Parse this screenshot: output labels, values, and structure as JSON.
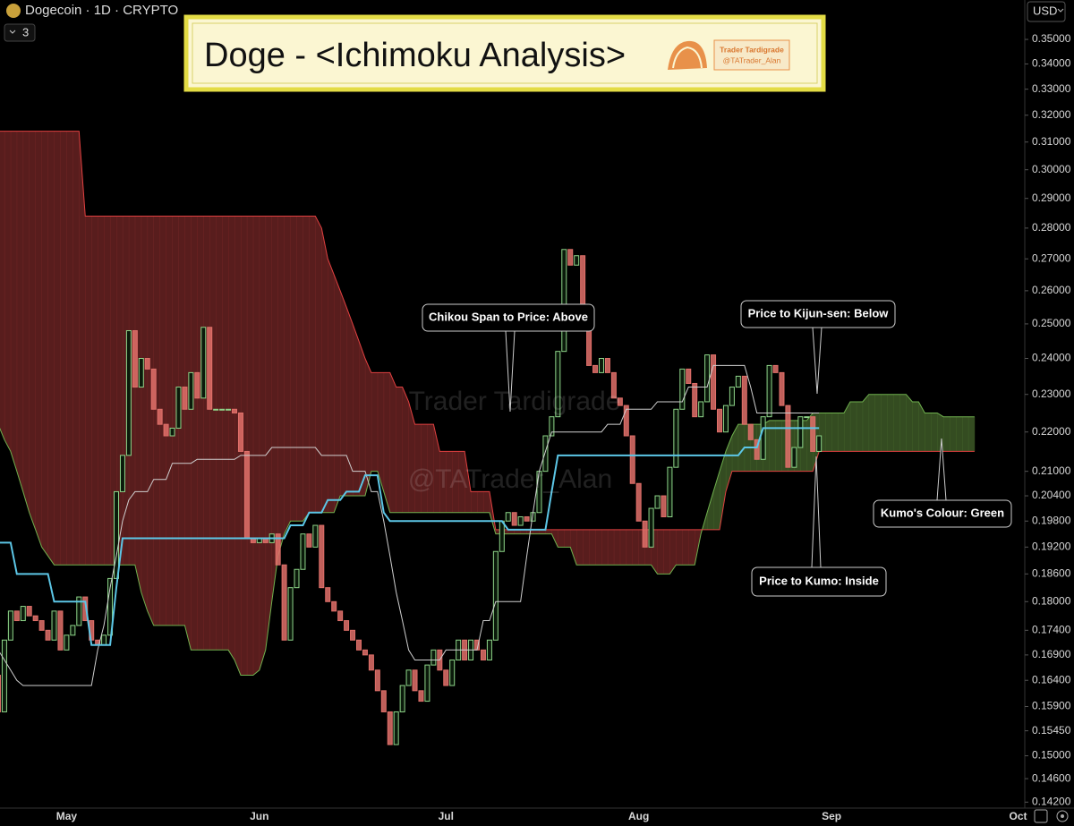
{
  "chart_data": {
    "type": "candlestick",
    "symbol": "Dogecoin · 1D · CRYPTO",
    "indicator_count": "3",
    "title": "Doge - <Ichimoku Analysis>",
    "logo_text": [
      "Trader Tardigrade",
      "@TATrader_Alan"
    ],
    "watermark": [
      "Trader Tardigrade",
      "@TATrader_Alan"
    ],
    "currency": "USD",
    "log_scale": true,
    "grid": false,
    "up_color": "#8fd68a",
    "down_color": "#e0706a",
    "ylim": [
      0.141,
      0.356
    ],
    "yticks": [
      {
        "value": 0.35,
        "label": "0.35000"
      },
      {
        "value": 0.34,
        "label": "0.34000"
      },
      {
        "value": 0.33,
        "label": "0.33000"
      },
      {
        "value": 0.32,
        "label": "0.32000"
      },
      {
        "value": 0.31,
        "label": "0.31000"
      },
      {
        "value": 0.3,
        "label": "0.30000"
      },
      {
        "value": 0.29,
        "label": "0.29000"
      },
      {
        "value": 0.28,
        "label": "0.28000"
      },
      {
        "value": 0.27,
        "label": "0.27000"
      },
      {
        "value": 0.26,
        "label": "0.26000"
      },
      {
        "value": 0.25,
        "label": "0.25000"
      },
      {
        "value": 0.24,
        "label": "0.24000"
      },
      {
        "value": 0.23,
        "label": "0.23000"
      },
      {
        "value": 0.22,
        "label": "0.22000"
      },
      {
        "value": 0.21,
        "label": "0.21000"
      },
      {
        "value": 0.204,
        "label": "0.20400"
      },
      {
        "value": 0.198,
        "label": "0.19800"
      },
      {
        "value": 0.192,
        "label": "0.19200"
      },
      {
        "value": 0.186,
        "label": "0.18600"
      },
      {
        "value": 0.18,
        "label": "0.18000"
      },
      {
        "value": 0.174,
        "label": "0.17400"
      },
      {
        "value": 0.169,
        "label": "0.16900"
      },
      {
        "value": 0.164,
        "label": "0.16400"
      },
      {
        "value": 0.159,
        "label": "0.15900"
      },
      {
        "value": 0.1545,
        "label": "0.15450"
      },
      {
        "value": 0.15,
        "label": "0.15000"
      },
      {
        "value": 0.146,
        "label": "0.14600"
      },
      {
        "value": 0.142,
        "label": "0.14200"
      }
    ],
    "categories": [
      null,
      null,
      null,
      null,
      null,
      null,
      null,
      null,
      null,
      null,
      null,
      "May",
      null,
      null,
      null,
      null,
      null,
      null,
      null,
      null,
      null,
      null,
      null,
      null,
      null,
      null,
      null,
      null,
      null,
      null,
      null,
      null,
      null,
      null,
      null,
      null,
      null,
      null,
      null,
      null,
      null,
      null,
      "Jun",
      null,
      null,
      null,
      null,
      null,
      null,
      null,
      null,
      null,
      null,
      null,
      null,
      null,
      null,
      null,
      null,
      null,
      null,
      null,
      null,
      null,
      null,
      null,
      null,
      null,
      null,
      null,
      null,
      null,
      "Jul",
      null,
      null,
      null,
      null,
      null,
      null,
      null,
      null,
      null,
      null,
      null,
      null,
      null,
      null,
      null,
      null,
      null,
      null,
      null,
      null,
      null,
      null,
      null,
      null,
      null,
      null,
      null,
      null,
      null,
      null,
      "Aug",
      null,
      null,
      null,
      null,
      null,
      null,
      null,
      null,
      null,
      null,
      null,
      null,
      null,
      null,
      null,
      null,
      null,
      null,
      null,
      null,
      null,
      null,
      null,
      null,
      null,
      null,
      null,
      null,
      null,
      null,
      "Sep",
      null,
      null,
      null,
      null,
      null,
      null,
      null,
      null,
      null,
      null,
      null,
      null,
      null,
      null,
      null,
      null,
      null,
      null,
      null,
      null,
      null,
      null,
      null,
      null,
      null,
      null,
      null,
      null,
      null,
      "Oct"
    ],
    "open": [
      0.165,
      0.158,
      0.172,
      0.178,
      0.176,
      0.179,
      0.177,
      0.176,
      0.174,
      0.172,
      0.178,
      0.17,
      0.173,
      0.175,
      0.181,
      0.176,
      0.172,
      0.171,
      0.173,
      0.185,
      0.205,
      0.214,
      0.248,
      0.232,
      0.24,
      0.237,
      0.226,
      0.222,
      0.219,
      0.221,
      0.232,
      0.226,
      0.236,
      0.229,
      0.249,
      0.226,
      0.226,
      0.226,
      0.226,
      0.225,
      0.215,
      0.194,
      0.193,
      0.194,
      0.193,
      0.195,
      0.188,
      0.172,
      0.183,
      0.187,
      0.195,
      0.192,
      0.197,
      0.183,
      0.18,
      0.178,
      0.176,
      0.174,
      0.172,
      0.17,
      0.169,
      0.166,
      0.162,
      0.158,
      0.152,
      0.158,
      0.163,
      0.166,
      0.162,
      0.16,
      0.167,
      0.17,
      0.166,
      0.163,
      0.168,
      0.172,
      0.168,
      0.172,
      0.17,
      0.168,
      0.172,
      0.191,
      0.198,
      0.2,
      0.197,
      0.199,
      0.198,
      0.2,
      0.21,
      0.219,
      0.224,
      0.242,
      0.273,
      0.268,
      0.271,
      0.248,
      0.238,
      0.236,
      0.24,
      0.236,
      0.229,
      0.227,
      0.219,
      0.207,
      0.198,
      0.192,
      0.201,
      0.204,
      0.199,
      0.211,
      0.226,
      0.237,
      0.233,
      0.224,
      0.228,
      0.241,
      0.226,
      0.22,
      0.227,
      0.232,
      0.235,
      0.222,
      0.218,
      0.213,
      0.224,
      0.238,
      0.236,
      0.227,
      0.211,
      0.216,
      0.224,
      0.224,
      0.215,
      null,
      null,
      null,
      null,
      null,
      null,
      null,
      null,
      null,
      null,
      null,
      null,
      null,
      null,
      null,
      null,
      null,
      null,
      null,
      null,
      null,
      null,
      null,
      null,
      null,
      null,
      null,
      null,
      null,
      null,
      null,
      null
    ],
    "close": [
      0.158,
      0.172,
      0.178,
      0.176,
      0.179,
      0.177,
      0.176,
      0.174,
      0.172,
      0.178,
      0.17,
      0.173,
      0.175,
      0.181,
      0.176,
      0.172,
      0.171,
      0.173,
      0.185,
      0.205,
      0.214,
      0.248,
      0.232,
      0.24,
      0.237,
      0.226,
      0.222,
      0.219,
      0.221,
      0.232,
      0.226,
      0.236,
      0.229,
      0.249,
      0.226,
      0.226,
      0.226,
      0.226,
      0.225,
      0.215,
      0.194,
      0.193,
      0.194,
      0.193,
      0.195,
      0.188,
      0.172,
      0.183,
      0.187,
      0.195,
      0.192,
      0.197,
      0.183,
      0.18,
      0.178,
      0.176,
      0.174,
      0.172,
      0.17,
      0.169,
      0.166,
      0.162,
      0.158,
      0.152,
      0.158,
      0.163,
      0.166,
      0.162,
      0.16,
      0.167,
      0.17,
      0.166,
      0.163,
      0.168,
      0.172,
      0.168,
      0.172,
      0.17,
      0.168,
      0.172,
      0.191,
      0.198,
      0.2,
      0.197,
      0.199,
      0.198,
      0.2,
      0.21,
      0.219,
      0.224,
      0.242,
      0.273,
      0.268,
      0.271,
      0.248,
      0.238,
      0.236,
      0.24,
      0.236,
      0.229,
      0.227,
      0.219,
      0.207,
      0.198,
      0.192,
      0.201,
      0.204,
      0.199,
      0.211,
      0.226,
      0.237,
      0.233,
      0.224,
      0.228,
      0.241,
      0.226,
      0.22,
      0.227,
      0.232,
      0.235,
      0.222,
      0.218,
      0.213,
      0.224,
      0.238,
      0.236,
      0.227,
      0.211,
      0.216,
      0.224,
      0.224,
      0.215,
      0.219,
      null,
      null,
      null,
      null,
      null,
      null,
      null,
      null,
      null,
      null,
      null,
      null,
      null,
      null,
      null,
      null,
      null,
      null,
      null,
      null,
      null,
      null,
      null,
      null,
      null,
      null,
      null,
      null,
      null,
      null,
      null,
      null
    ],
    "lines": [
      {
        "color": "#cfcfcf",
        "values": [
          0.17,
          0.168,
          0.166,
          0.164,
          0.163,
          0.163,
          0.163,
          0.163,
          0.163,
          0.163,
          0.163,
          0.163,
          0.163,
          0.163,
          0.163,
          0.163,
          0.17,
          0.175,
          0.183,
          0.19,
          0.198,
          0.203,
          0.205,
          0.205,
          0.205,
          0.208,
          0.208,
          0.208,
          0.212,
          0.212,
          0.212,
          0.212,
          0.213,
          0.213,
          0.213,
          0.213,
          0.213,
          0.213,
          0.213,
          0.214,
          0.214,
          0.214,
          0.214,
          0.214,
          0.216,
          0.216,
          0.216,
          0.216,
          0.216,
          0.216,
          0.216,
          0.216,
          0.214,
          0.214,
          0.214,
          0.214,
          0.214,
          0.21,
          0.21,
          0.21,
          0.205,
          0.205,
          0.198,
          0.19,
          0.182,
          0.176,
          0.17,
          0.168,
          0.168,
          0.168,
          0.168,
          0.168,
          0.17,
          0.17,
          0.17,
          0.17,
          0.17,
          0.17,
          0.176,
          0.176,
          0.18,
          0.18,
          0.18,
          0.18,
          0.18,
          0.19,
          0.2,
          0.21,
          0.215,
          0.22,
          0.22,
          0.22,
          0.22,
          0.22,
          0.22,
          0.22,
          0.22,
          0.22,
          0.222,
          0.222,
          0.222,
          0.226,
          0.226,
          0.226,
          0.226,
          0.226,
          0.228,
          0.228,
          0.228,
          0.228,
          0.228,
          0.232,
          0.232,
          0.232,
          0.232,
          0.238,
          0.238,
          0.238,
          0.238,
          0.238,
          0.238,
          0.232,
          0.225,
          0.225,
          0.225,
          0.225,
          0.225,
          0.225,
          0.225,
          0.225,
          0.225,
          0.225,
          0.225,
          null,
          null,
          null,
          null,
          null,
          null,
          null,
          null,
          null,
          null,
          null,
          null,
          null,
          null,
          null,
          null,
          null,
          null,
          null,
          null,
          null,
          null,
          null,
          null,
          null,
          null,
          null,
          null,
          null,
          null,
          null,
          null
        ]
      },
      {
        "color": "#5cc6e6",
        "values": [
          0.193,
          0.193,
          0.193,
          0.186,
          0.186,
          0.186,
          0.186,
          0.186,
          0.186,
          0.18,
          0.18,
          0.18,
          0.18,
          0.18,
          0.18,
          0.171,
          0.171,
          0.171,
          0.171,
          0.183,
          0.194,
          0.194,
          0.194,
          0.194,
          0.194,
          0.194,
          0.194,
          0.194,
          0.194,
          0.194,
          0.194,
          0.194,
          0.194,
          0.194,
          0.194,
          0.194,
          0.194,
          0.194,
          0.194,
          0.194,
          0.194,
          0.194,
          0.194,
          0.194,
          0.194,
          0.194,
          0.194,
          0.197,
          0.197,
          0.197,
          0.2,
          0.2,
          0.2,
          0.203,
          0.203,
          0.203,
          0.205,
          0.205,
          0.205,
          0.209,
          0.209,
          0.209,
          0.2,
          0.198,
          0.198,
          0.198,
          0.198,
          0.198,
          0.198,
          0.198,
          0.198,
          0.198,
          0.198,
          0.198,
          0.198,
          0.198,
          0.198,
          0.198,
          0.198,
          0.198,
          0.198,
          0.198,
          0.196,
          0.196,
          0.196,
          0.196,
          0.196,
          0.196,
          0.196,
          0.205,
          0.214,
          0.214,
          0.214,
          0.214,
          0.214,
          0.214,
          0.214,
          0.214,
          0.214,
          0.214,
          0.214,
          0.214,
          0.214,
          0.214,
          0.214,
          0.214,
          0.214,
          0.214,
          0.214,
          0.214,
          0.214,
          0.214,
          0.214,
          0.214,
          0.214,
          0.214,
          0.214,
          0.214,
          0.214,
          0.214,
          0.216,
          0.216,
          0.216,
          0.221,
          0.221,
          0.221,
          0.221,
          0.221,
          0.221,
          0.221,
          0.221,
          0.221,
          0.221,
          null,
          null,
          null,
          null,
          null,
          null,
          null,
          null,
          null,
          null,
          null,
          null,
          null,
          null,
          null,
          null,
          null,
          null,
          null,
          null,
          null,
          null,
          null,
          null,
          null,
          null,
          null,
          null,
          null,
          null,
          null,
          null
        ]
      }
    ],
    "kumo": {
      "bull_color": "#5f8a3c",
      "bear_color": "#b03a3a",
      "span_a_color": "#6fb04e",
      "span_b_color": "#e04040",
      "span_a": [
        0.222,
        0.218,
        0.215,
        0.21,
        0.205,
        0.2,
        0.196,
        0.192,
        0.19,
        0.188,
        0.188,
        0.188,
        0.188,
        0.188,
        0.188,
        0.188,
        0.188,
        0.188,
        0.188,
        0.188,
        0.188,
        0.188,
        0.188,
        0.182,
        0.178,
        0.175,
        0.175,
        0.175,
        0.175,
        0.175,
        0.175,
        0.17,
        0.17,
        0.17,
        0.17,
        0.17,
        0.17,
        0.17,
        0.168,
        0.165,
        0.165,
        0.165,
        0.166,
        0.17,
        0.18,
        0.19,
        0.195,
        0.198,
        0.198,
        0.198,
        0.2,
        0.2,
        0.2,
        0.2,
        0.2,
        0.204,
        0.204,
        0.204,
        0.204,
        0.204,
        0.21,
        0.21,
        0.205,
        0.2,
        0.2,
        0.2,
        0.2,
        0.2,
        0.2,
        0.2,
        0.2,
        0.2,
        0.2,
        0.2,
        0.2,
        0.2,
        0.2,
        0.2,
        0.2,
        0.2,
        0.195,
        0.195,
        0.195,
        0.195,
        0.195,
        0.195,
        0.195,
        0.195,
        0.195,
        0.195,
        0.192,
        0.192,
        0.192,
        0.188,
        0.188,
        0.188,
        0.188,
        0.188,
        0.188,
        0.188,
        0.188,
        0.188,
        0.188,
        0.188,
        0.188,
        0.188,
        0.186,
        0.186,
        0.186,
        0.188,
        0.188,
        0.188,
        0.188,
        0.195,
        0.2,
        0.205,
        0.21,
        0.215,
        0.219,
        0.222,
        0.222,
        0.222,
        0.222,
        0.222,
        0.223,
        0.223,
        0.223,
        0.223,
        0.223,
        0.223,
        0.223,
        0.225,
        0.225,
        0.225,
        0.225,
        0.225,
        0.225,
        0.228,
        0.228,
        0.228,
        0.23,
        0.23,
        0.23,
        0.23,
        0.23,
        0.23,
        0.23,
        0.228,
        0.228,
        0.225,
        0.225,
        0.225,
        0.224,
        0.224,
        0.224,
        0.224,
        0.224,
        0.224,
        null,
        null,
        null,
        null,
        null,
        null,
        null
      ],
      "span_b": [
        0.314,
        0.314,
        0.314,
        0.314,
        0.314,
        0.314,
        0.314,
        0.314,
        0.314,
        0.314,
        0.314,
        0.314,
        0.314,
        0.314,
        0.284,
        0.284,
        0.284,
        0.284,
        0.284,
        0.284,
        0.284,
        0.284,
        0.284,
        0.284,
        0.284,
        0.284,
        0.284,
        0.284,
        0.284,
        0.284,
        0.284,
        0.284,
        0.284,
        0.284,
        0.284,
        0.284,
        0.284,
        0.284,
        0.284,
        0.284,
        0.284,
        0.284,
        0.284,
        0.284,
        0.284,
        0.284,
        0.284,
        0.284,
        0.284,
        0.284,
        0.284,
        0.284,
        0.28,
        0.27,
        0.265,
        0.26,
        0.255,
        0.25,
        0.245,
        0.24,
        0.236,
        0.236,
        0.236,
        0.236,
        0.232,
        0.232,
        0.228,
        0.222,
        0.222,
        0.222,
        0.222,
        0.215,
        0.215,
        0.215,
        0.215,
        0.215,
        0.205,
        0.205,
        0.205,
        0.205,
        0.196,
        0.196,
        0.196,
        0.196,
        0.196,
        0.196,
        0.196,
        0.196,
        0.196,
        0.196,
        0.196,
        0.196,
        0.196,
        0.196,
        0.196,
        0.196,
        0.196,
        0.196,
        0.196,
        0.196,
        0.196,
        0.196,
        0.196,
        0.196,
        0.196,
        0.196,
        0.196,
        0.196,
        0.196,
        0.196,
        0.196,
        0.196,
        0.196,
        0.196,
        0.196,
        0.196,
        0.196,
        0.205,
        0.21,
        0.21,
        0.21,
        0.21,
        0.21,
        0.21,
        0.21,
        0.21,
        0.21,
        0.21,
        0.21,
        0.21,
        0.21,
        0.21,
        0.215,
        0.215,
        0.215,
        0.215,
        0.215,
        0.215,
        0.215,
        0.215,
        0.215,
        0.215,
        0.215,
        0.215,
        0.215,
        0.215,
        0.215,
        0.215,
        0.215,
        0.215,
        0.215,
        0.215,
        0.215,
        0.215,
        0.215,
        0.215,
        0.215,
        0.215,
        null,
        null,
        null,
        null,
        null,
        null,
        null
      ]
    },
    "annotations": [
      "Chikou Span to Price: Above",
      "Price to Kijun-sen: Below",
      "Kumo's Colour: Green",
      "Price to Kumo: Inside"
    ]
  }
}
